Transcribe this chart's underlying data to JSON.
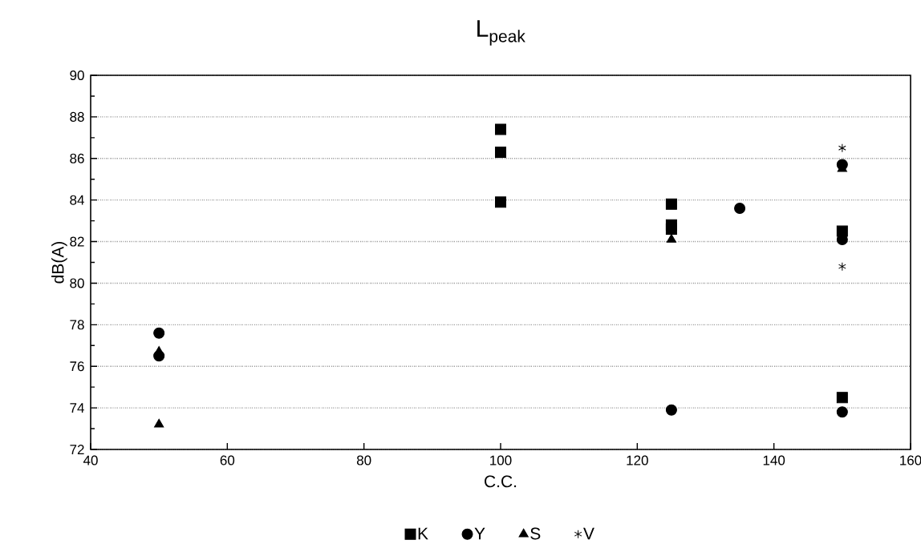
{
  "chart_data": {
    "type": "scatter",
    "title": "L$_{peak}$",
    "xlabel": "C.C.",
    "ylabel": "dB(A)",
    "xlim": [
      40,
      160
    ],
    "xticks": [
      40,
      60,
      80,
      100,
      120,
      140,
      160
    ],
    "ylim": [
      72,
      90
    ],
    "yticks": [
      72,
      74,
      76,
      78,
      80,
      82,
      84,
      86,
      88,
      90
    ],
    "grid": "y",
    "legend": "bottom",
    "series": [
      {
        "name": "K",
        "color": "#000000",
        "marker": "square",
        "x": [
          100,
          100,
          100,
          125,
          125,
          125,
          150,
          150
        ],
        "values": [
          87.4,
          86.3,
          83.9,
          83.8,
          82.8,
          82.6,
          82.5,
          74.5
        ]
      },
      {
        "name": "Y",
        "color": "#000000",
        "marker": "circle",
        "x": [
          50,
          50,
          125,
          135,
          150,
          150,
          150
        ],
        "values": [
          77.6,
          76.5,
          73.9,
          83.6,
          85.7,
          82.1,
          73.8
        ]
      },
      {
        "name": "S",
        "color": "#000000",
        "marker": "triangle",
        "x": [
          50,
          50,
          125,
          150
        ],
        "values": [
          76.7,
          73.2,
          82.1,
          85.5
        ]
      },
      {
        "name": "V",
        "color": "#000000",
        "marker": "cross",
        "x": [
          150,
          150
        ],
        "values": [
          86.5,
          80.8
        ]
      }
    ]
  }
}
